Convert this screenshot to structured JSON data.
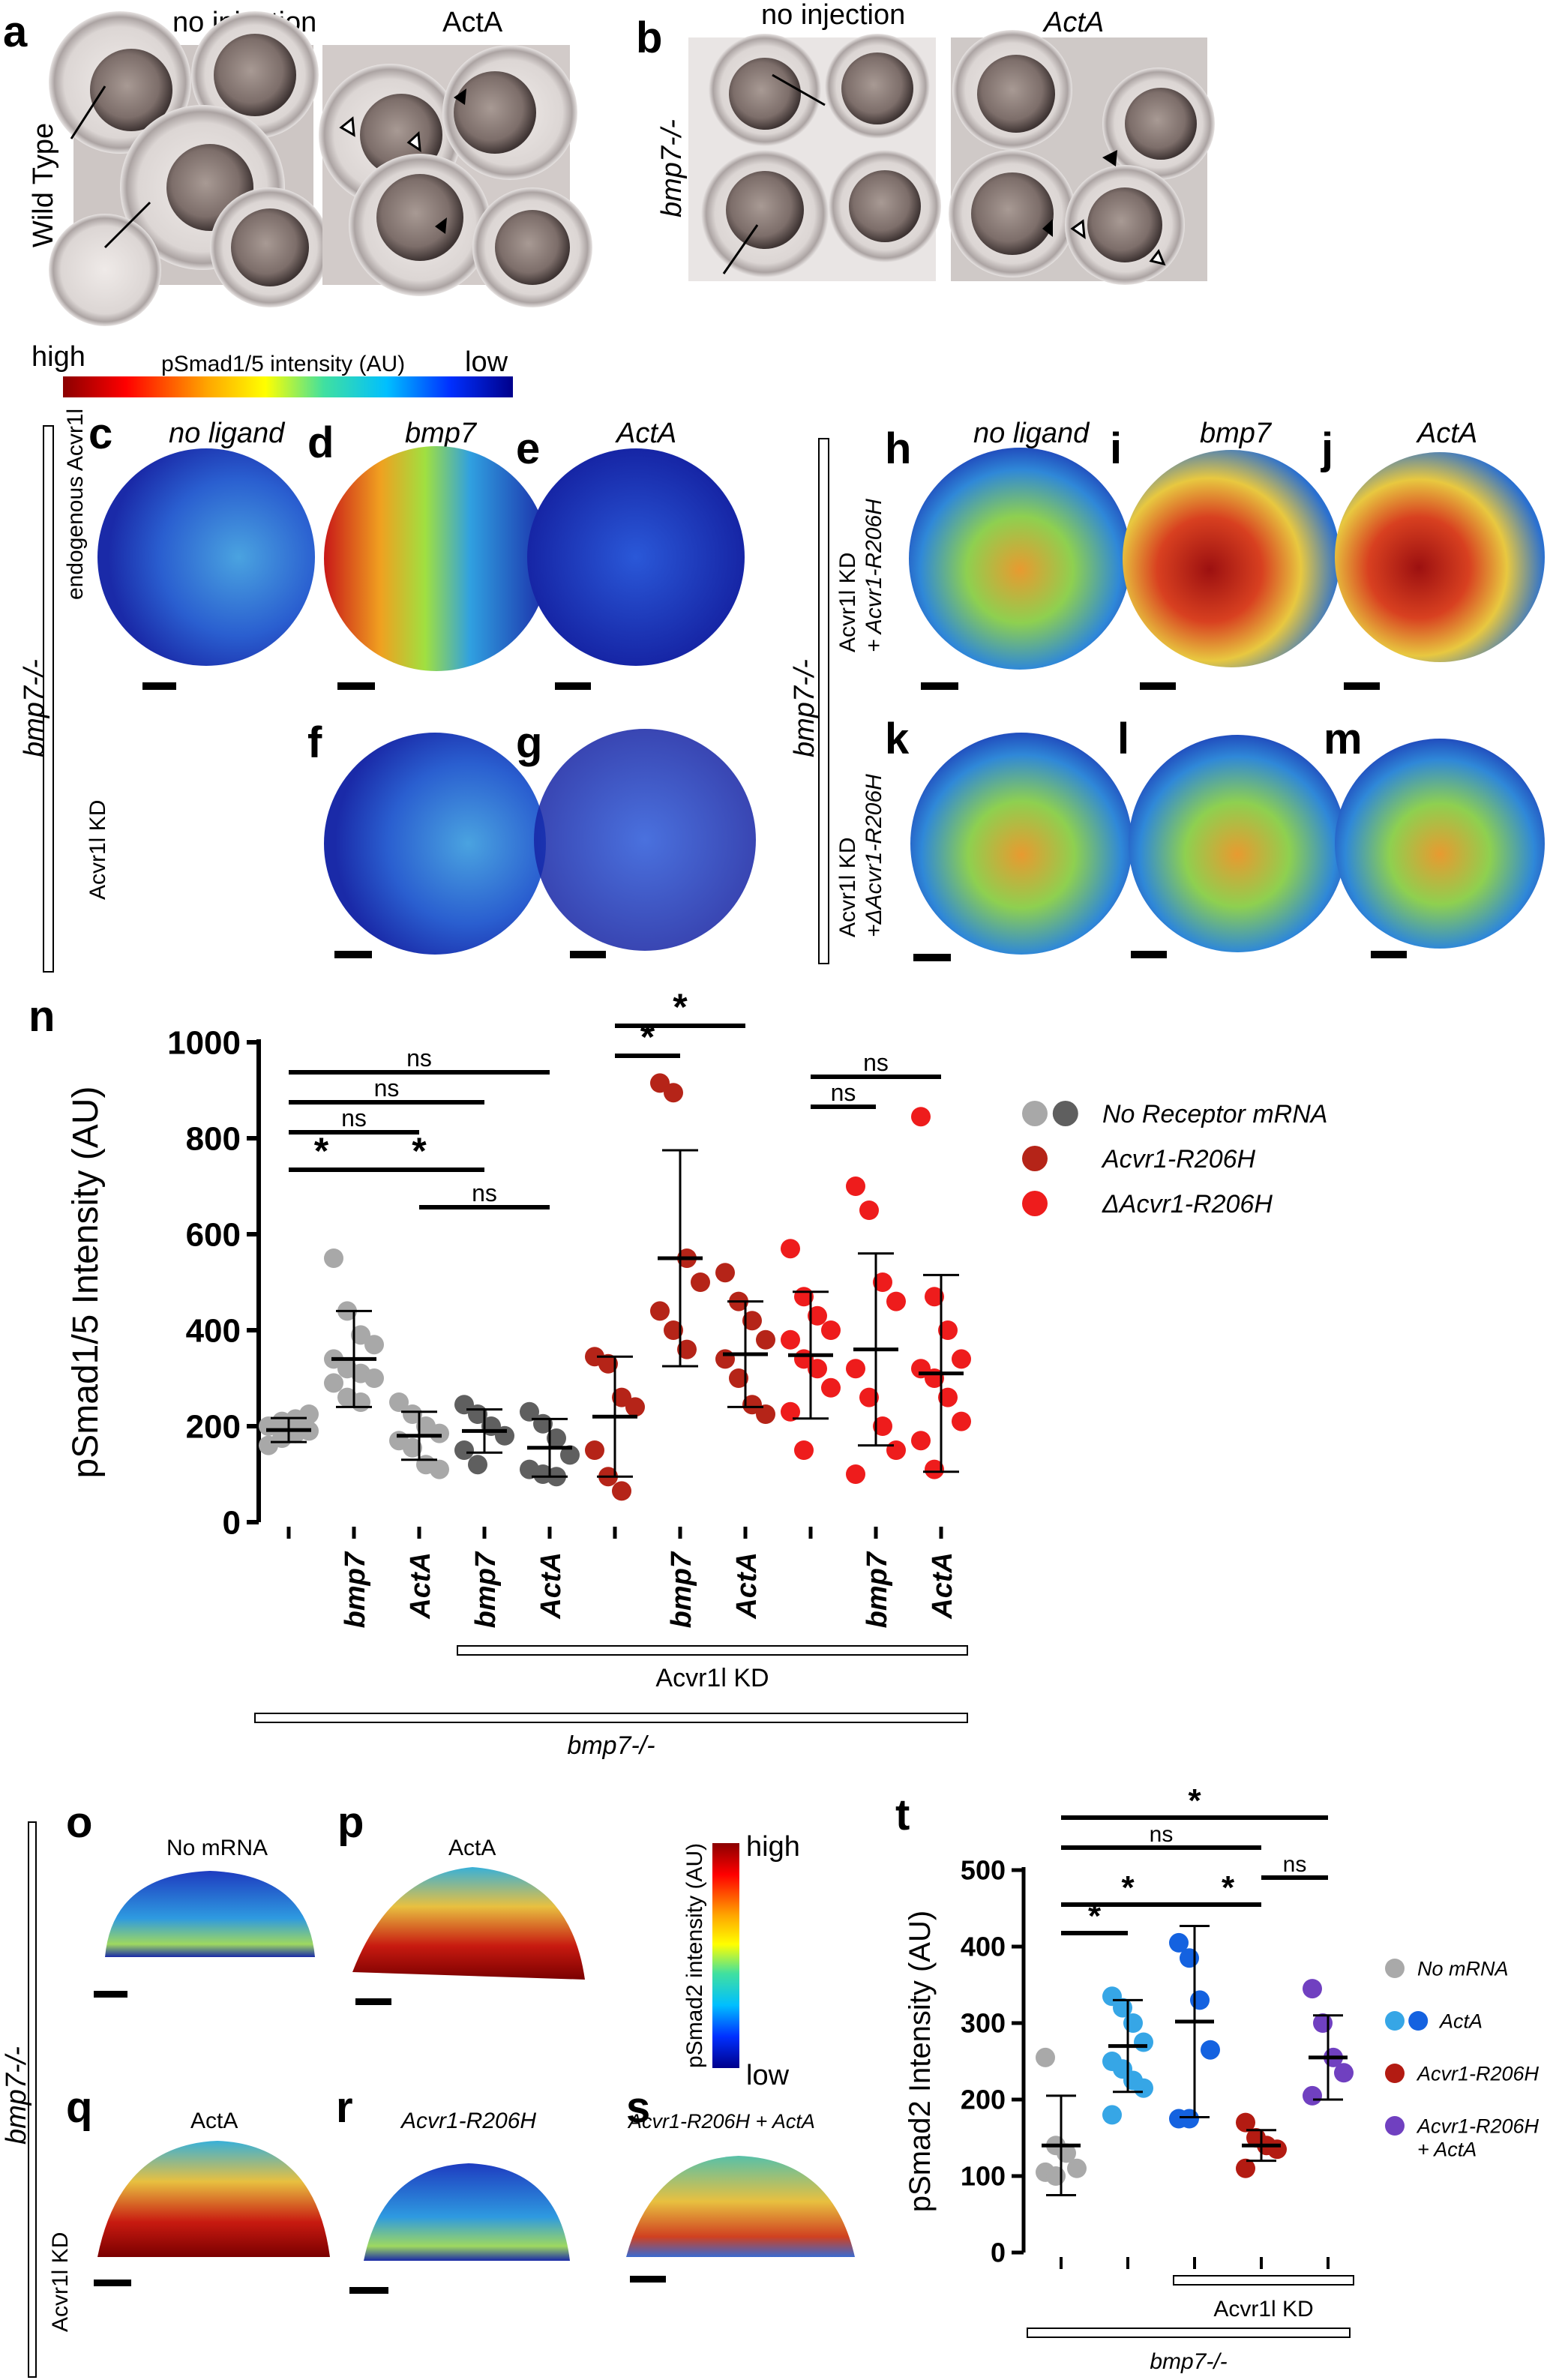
{
  "panels": {
    "a": {
      "label": "a",
      "col1": "no injection",
      "col2": "ActA",
      "row": "Wild Type"
    },
    "b": {
      "label": "b",
      "col1": "no injection",
      "col2": "ActA",
      "row": "bmp7-/-"
    },
    "colorbar_top": {
      "high": "high",
      "title": "pSmad1/5 intensity (AU)",
      "low": "low"
    },
    "c": {
      "label": "c",
      "title": "no ligand"
    },
    "d": {
      "label": "d",
      "title": "bmp7"
    },
    "e": {
      "label": "e",
      "title": "ActA"
    },
    "f": {
      "label": "f"
    },
    "g": {
      "label": "g"
    },
    "h": {
      "label": "h",
      "title": "no ligand"
    },
    "i": {
      "label": "i",
      "title": "bmp7"
    },
    "j": {
      "label": "j",
      "title": "ActA"
    },
    "k": {
      "label": "k"
    },
    "l": {
      "label": "l"
    },
    "m": {
      "label": "m"
    },
    "left_group": {
      "genotype": "bmp7-/-",
      "row1": "endogenous Acvr1l",
      "row2": "Acvr1l KD"
    },
    "right_group": {
      "genotype": "bmp7-/-",
      "row1a": "Acvr1l KD",
      "row1b": "+ Acvr1-R206H",
      "row2a": "Acvr1l KD",
      "row2b": "+ΔAcvr1-R206H"
    },
    "n": {
      "label": "n"
    },
    "o": {
      "label": "o",
      "title": "No mRNA"
    },
    "p": {
      "label": "p",
      "title": "ActA"
    },
    "q": {
      "label": "q",
      "title": "ActA"
    },
    "r": {
      "label": "r",
      "title": "Acvr1-R206H"
    },
    "s": {
      "label": "s",
      "title": "Acvr1-R206H + ActA"
    },
    "colorbar_bottom": {
      "high": "high",
      "title": "pSmad2 intensity (AU)",
      "low": "low"
    },
    "bottom_group": {
      "genotype": "bmp7-/-",
      "row2": "Acvr1l KD"
    },
    "t": {
      "label": "t"
    }
  },
  "colors": {
    "grey_light": "#a8a8a8",
    "grey_dark": "#5f5f5f",
    "darkred": "#b52418",
    "red": "#ee1c1c",
    "grey_t": "#a9a9a9",
    "lightblue": "#36a6e6",
    "blue": "#1462e0",
    "darkred_t": "#b31b12",
    "purple": "#7040c0"
  },
  "chart_data": [
    {
      "id": "n",
      "type": "scatter",
      "ylabel": "pSmad1/5 Intensity (AU)",
      "ylim": [
        0,
        1000
      ],
      "yticks": [
        0,
        200,
        400,
        600,
        800,
        1000
      ],
      "categories": [
        "",
        "bmp7",
        "ActA",
        "bmp7",
        "ActA",
        "",
        "bmp7",
        "ActA",
        "",
        "bmp7",
        "ActA"
      ],
      "group_brackets": [
        {
          "label": "Acvr1l KD",
          "from": 3,
          "to": 10
        },
        {
          "label": "bmp7-/-",
          "from": 0,
          "to": 10
        }
      ],
      "legend": [
        {
          "label": "No Receptor mRNA",
          "colors": [
            "#a8a8a8",
            "#5f5f5f"
          ]
        },
        {
          "label": "Acvr1-R206H",
          "colors": [
            "#b52418"
          ]
        },
        {
          "label": "ΔAcvr1-R206H",
          "colors": [
            "#ee1c1c"
          ]
        }
      ],
      "groups": [
        {
          "color": "#a8a8a8",
          "mean": 192,
          "sd": 25,
          "values": [
            160,
            175,
            185,
            190,
            200,
            210,
            215,
            225
          ]
        },
        {
          "color": "#a8a8a8",
          "mean": 340,
          "sd": 100,
          "values": [
            550,
            440,
            390,
            370,
            340,
            320,
            310,
            300,
            290,
            260,
            250
          ]
        },
        {
          "color": "#a8a8a8",
          "mean": 180,
          "sd": 50,
          "values": [
            250,
            225,
            200,
            185,
            170,
            155,
            120,
            110
          ]
        },
        {
          "color": "#5f5f5f",
          "mean": 190,
          "sd": 45,
          "values": [
            245,
            225,
            200,
            180,
            150,
            120
          ]
        },
        {
          "color": "#5f5f5f",
          "mean": 155,
          "sd": 60,
          "values": [
            230,
            205,
            175,
            140,
            110,
            100,
            95
          ]
        },
        {
          "color": "#b52418",
          "mean": 220,
          "sd": 125,
          "values": [
            345,
            330,
            260,
            240,
            150,
            95,
            65
          ]
        },
        {
          "color": "#b52418",
          "mean": 550,
          "sd": 225,
          "values": [
            915,
            895,
            550,
            500,
            440,
            400,
            360
          ]
        },
        {
          "color": "#b52418",
          "mean": 350,
          "sd": 110,
          "values": [
            520,
            460,
            420,
            380,
            340,
            300,
            245,
            225
          ]
        },
        {
          "color": "#ee1c1c",
          "mean": 348,
          "sd": 132,
          "values": [
            570,
            470,
            430,
            400,
            380,
            340,
            320,
            280,
            230,
            150
          ]
        },
        {
          "color": "#ee1c1c",
          "mean": 360,
          "sd": 200,
          "values": [
            700,
            650,
            500,
            460,
            320,
            260,
            200,
            150,
            100
          ]
        },
        {
          "color": "#ee1c1c",
          "mean": 310,
          "sd": 205,
          "values": [
            845,
            470,
            400,
            340,
            320,
            300,
            260,
            210,
            170,
            110
          ]
        }
      ],
      "significance": [
        {
          "from": 0,
          "to": 2,
          "text": "ns"
        },
        {
          "from": 0,
          "to": 3,
          "text": "ns"
        },
        {
          "from": 0,
          "to": 4,
          "text": "ns"
        },
        {
          "from": 0,
          "to": 1,
          "text": "*"
        },
        {
          "from": 1,
          "to": 3,
          "text": "*"
        },
        {
          "from": 2,
          "to": 4,
          "text": "ns"
        },
        {
          "from": 5,
          "to": 6,
          "text": "*"
        },
        {
          "from": 5,
          "to": 7,
          "text": "*"
        },
        {
          "from": 8,
          "to": 9,
          "text": "ns"
        },
        {
          "from": 8,
          "to": 10,
          "text": "ns"
        }
      ]
    },
    {
      "id": "t",
      "type": "scatter",
      "ylabel": "pSmad2 Intensity (AU)",
      "ylim": [
        0,
        500
      ],
      "yticks": [
        0,
        100,
        200,
        300,
        400,
        500
      ],
      "group_brackets": [
        {
          "label": "Acvr1l KD",
          "from": 2,
          "to": 4
        },
        {
          "label": "bmp7-/-",
          "from": 0,
          "to": 4
        }
      ],
      "legend": [
        {
          "label": "No mRNA",
          "colors": [
            "#a9a9a9"
          ]
        },
        {
          "label": "ActA",
          "colors": [
            "#36a6e6",
            "#1462e0"
          ]
        },
        {
          "label": "Acvr1-R206H",
          "colors": [
            "#b31b12"
          ]
        },
        {
          "label": "Acvr1-R206H + ActA",
          "colors": [
            "#7040c0"
          ]
        }
      ],
      "groups": [
        {
          "color": "#a9a9a9",
          "mean": 140,
          "sd": 65,
          "values": [
            255,
            140,
            130,
            110,
            105,
            100
          ]
        },
        {
          "color": "#36a6e6",
          "mean": 270,
          "sd": 60,
          "values": [
            335,
            320,
            300,
            275,
            250,
            240,
            225,
            215,
            180
          ]
        },
        {
          "color": "#1462e0",
          "mean": 302,
          "sd": 125,
          "values": [
            405,
            385,
            330,
            265,
            175,
            175
          ]
        },
        {
          "color": "#b31b12",
          "mean": 140,
          "sd": 20,
          "values": [
            170,
            150,
            140,
            135,
            110
          ]
        },
        {
          "color": "#7040c0",
          "mean": 255,
          "sd": 55,
          "values": [
            345,
            300,
            255,
            235,
            205
          ]
        }
      ],
      "significance": [
        {
          "from": 0,
          "to": 4,
          "text": "*"
        },
        {
          "from": 0,
          "to": 3,
          "text": "ns"
        },
        {
          "from": 3,
          "to": 4,
          "text": "ns"
        },
        {
          "from": 0,
          "to": 2,
          "text": "*"
        },
        {
          "from": 2,
          "to": 3,
          "text": "*"
        },
        {
          "from": 0,
          "to": 1,
          "text": "*"
        }
      ]
    }
  ]
}
